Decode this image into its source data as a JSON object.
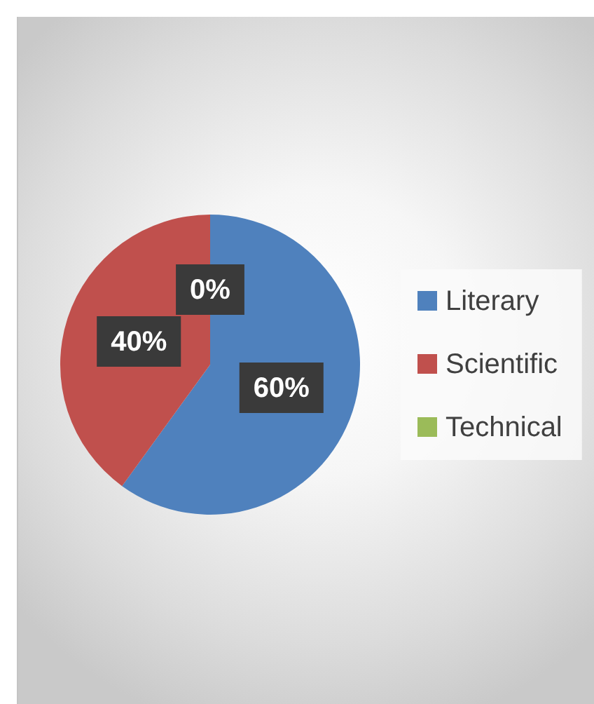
{
  "chart_data": {
    "type": "pie",
    "categories": [
      "Literary",
      "Scientific",
      "Technical"
    ],
    "values": [
      60,
      40,
      0
    ],
    "colors": [
      "#4f81bd",
      "#c0504d",
      "#9bbb59"
    ],
    "value_labels": [
      "60%",
      "40%",
      "0%"
    ],
    "legend": "right"
  }
}
